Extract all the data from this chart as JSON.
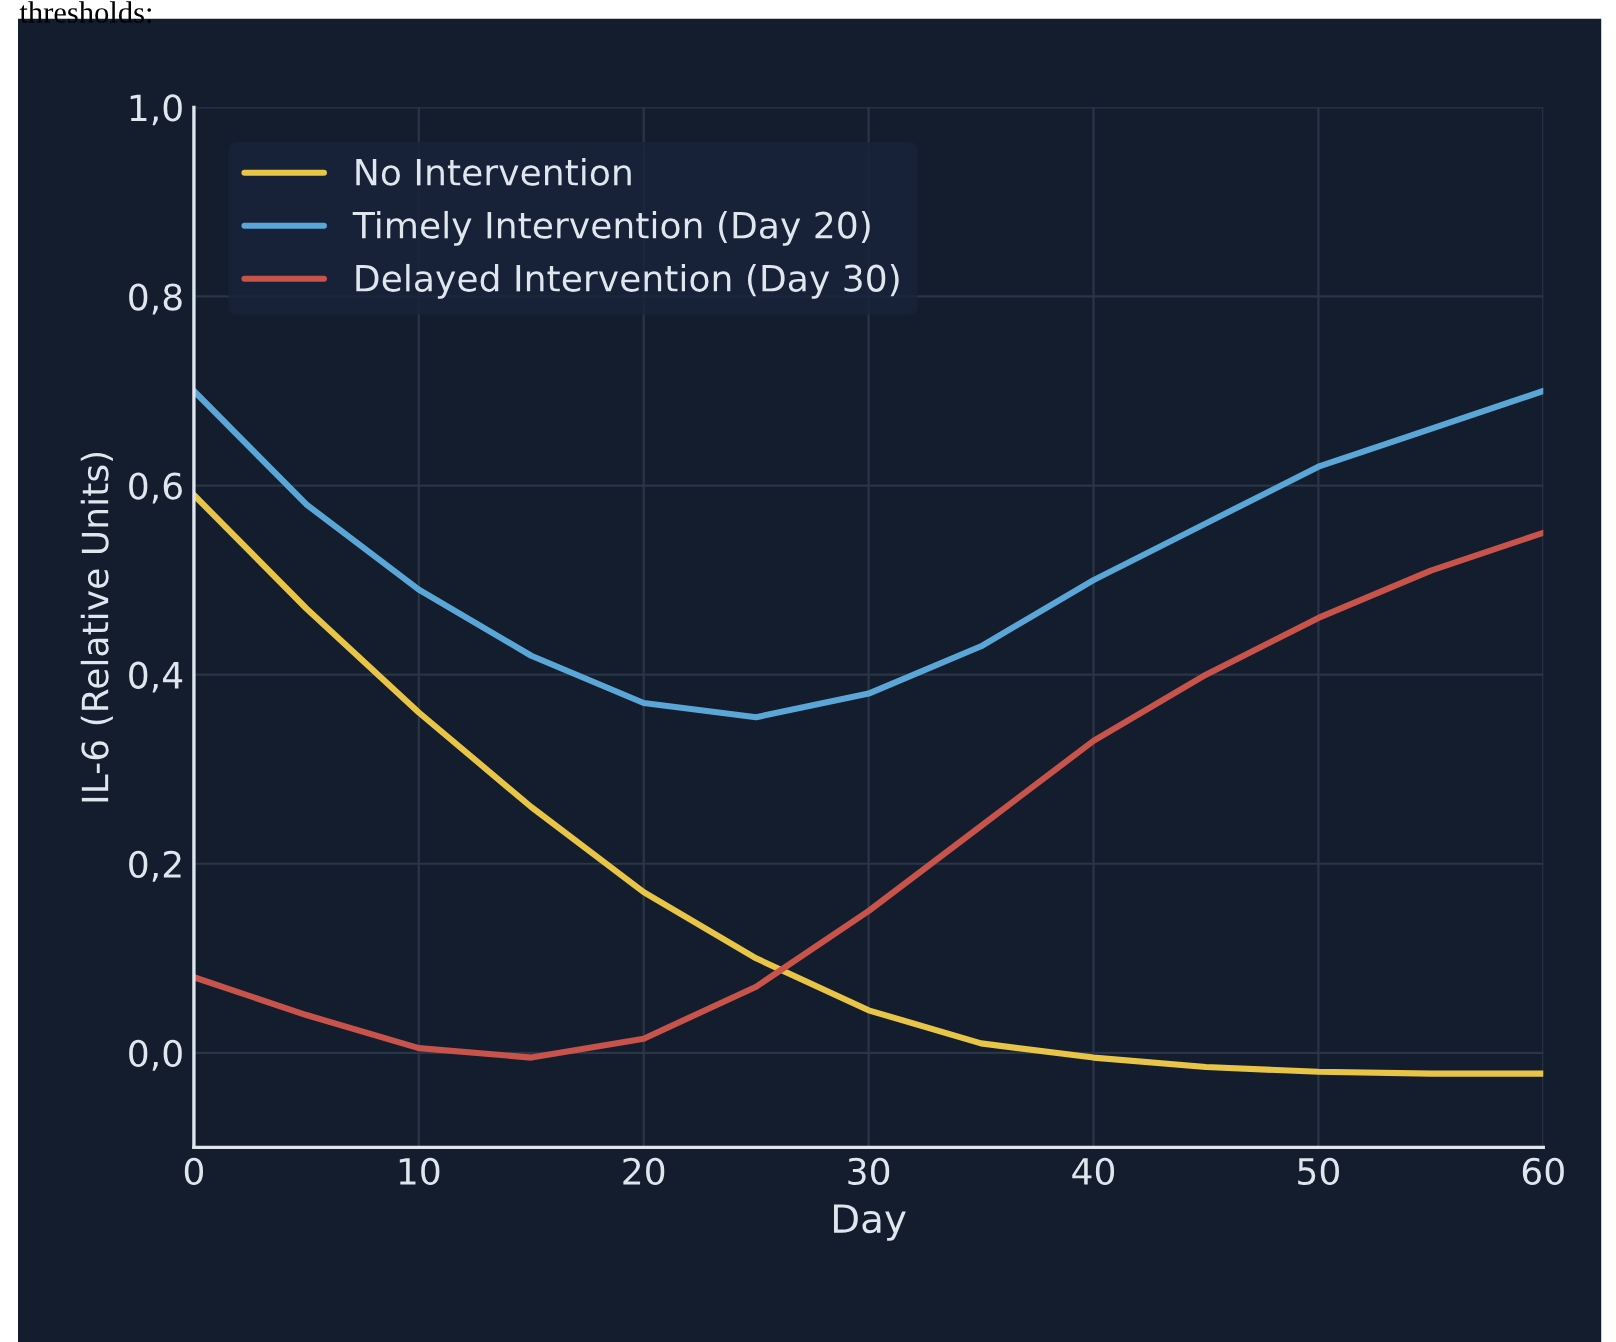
{
  "chart_data": {
    "type": "line",
    "xlabel": "Day",
    "ylabel": "IL-6 (Relative Units)",
    "annotations": [
      "thresholds:"
    ],
    "x": [
      0,
      5,
      10,
      15,
      20,
      25,
      30,
      35,
      40,
      45,
      50,
      55,
      60
    ],
    "series": [
      {
        "name": "No Intervention",
        "color": "#e8c547",
        "values": [
          0.59,
          0.47,
          0.36,
          0.26,
          0.17,
          0.1,
          0.045,
          0.01,
          -0.005,
          -0.015,
          -0.02,
          -0.022,
          -0.022
        ]
      },
      {
        "name": "Timely Intervention (Day 20)",
        "color": "#5aa6d6",
        "values": [
          0.7,
          0.58,
          0.49,
          0.42,
          0.37,
          0.355,
          0.38,
          0.43,
          0.5,
          0.56,
          0.62,
          0.66,
          0.7
        ]
      },
      {
        "name": "Delayed Intervention (Day 30)",
        "color": "#c8534a",
        "values": [
          0.08,
          0.04,
          0.005,
          -0.005,
          0.015,
          0.07,
          0.15,
          0.24,
          0.33,
          0.4,
          0.46,
          0.51,
          0.55
        ]
      }
    ],
    "xlim": [
      0,
      60
    ],
    "xticks": [
      0,
      10,
      20,
      30,
      40,
      50,
      60
    ],
    "ylim": [
      -0.1,
      1.0
    ],
    "yticks": [
      {
        "value": 0,
        "label": "0,0"
      },
      {
        "value": 0.2,
        "label": "0,2"
      },
      {
        "value": 0.4,
        "label": "0,4"
      },
      {
        "value": 0.6,
        "label": "0,6"
      },
      {
        "value": 0.8,
        "label": "0,8"
      },
      {
        "value": 1.0,
        "label": "1,0"
      }
    ],
    "grid": true,
    "legend": "top left",
    "marker": "none",
    "line_style": "solid"
  }
}
